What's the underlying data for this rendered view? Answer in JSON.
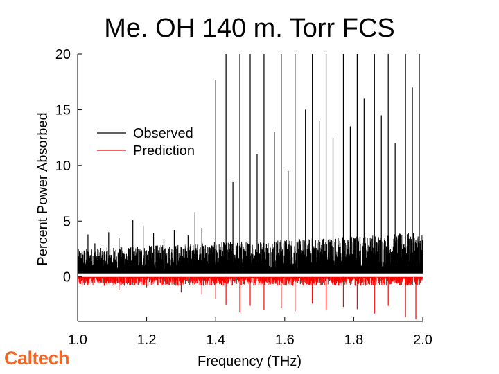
{
  "slide": {
    "title": "Me. OH 140 m. Torr FCS",
    "logo_text": "Caltech"
  },
  "chart_data": {
    "type": "line",
    "title": "Me. OH 140 m. Torr FCS",
    "xlabel": "Frequency (THz)",
    "ylabel": "Percent Power Absorbed",
    "xlim": [
      1.0,
      2.0
    ],
    "ylim": [
      -4,
      20
    ],
    "x_ticks": [
      1.0,
      1.2,
      1.4,
      1.6,
      1.8,
      2.0
    ],
    "x_tick_labels": [
      "1.0",
      "1.2",
      "1.4",
      "1.6",
      "1.8",
      "2.0"
    ],
    "y_ticks": [
      0,
      5,
      10,
      15,
      20
    ],
    "y_tick_labels": [
      "0",
      "5",
      "10",
      "15",
      "20"
    ],
    "legend": {
      "placement": "upper-left",
      "entries": [
        {
          "label": "Observed",
          "color": "#000000"
        },
        {
          "label": "Prediction",
          "color": "#ff0000"
        }
      ]
    },
    "series": [
      {
        "name": "Observed",
        "color": "#000000",
        "baseline_range": [
          0.5,
          2.5
        ],
        "peaks": [
          {
            "x": 1.03,
            "y": 3.8
          },
          {
            "x": 1.05,
            "y": 3.0
          },
          {
            "x": 1.09,
            "y": 4.0
          },
          {
            "x": 1.12,
            "y": 3.5
          },
          {
            "x": 1.16,
            "y": 5.1
          },
          {
            "x": 1.19,
            "y": 4.6
          },
          {
            "x": 1.22,
            "y": 3.9
          },
          {
            "x": 1.25,
            "y": 3.4
          },
          {
            "x": 1.28,
            "y": 4.2
          },
          {
            "x": 1.32,
            "y": 3.7
          },
          {
            "x": 1.34,
            "y": 5.8
          },
          {
            "x": 1.36,
            "y": 4.4
          },
          {
            "x": 1.4,
            "y": 17.7
          },
          {
            "x": 1.43,
            "y": 20.0
          },
          {
            "x": 1.45,
            "y": 8.5
          },
          {
            "x": 1.47,
            "y": 20.0
          },
          {
            "x": 1.5,
            "y": 20.0
          },
          {
            "x": 1.52,
            "y": 11.0
          },
          {
            "x": 1.54,
            "y": 20.0
          },
          {
            "x": 1.57,
            "y": 13.0
          },
          {
            "x": 1.59,
            "y": 20.0
          },
          {
            "x": 1.61,
            "y": 9.5
          },
          {
            "x": 1.63,
            "y": 20.0
          },
          {
            "x": 1.66,
            "y": 15.0
          },
          {
            "x": 1.68,
            "y": 20.0
          },
          {
            "x": 1.7,
            "y": 14.0
          },
          {
            "x": 1.72,
            "y": 20.0
          },
          {
            "x": 1.74,
            "y": 12.5
          },
          {
            "x": 1.77,
            "y": 20.0
          },
          {
            "x": 1.79,
            "y": 13.5
          },
          {
            "x": 1.81,
            "y": 20.0
          },
          {
            "x": 1.83,
            "y": 16.0
          },
          {
            "x": 1.86,
            "y": 20.0
          },
          {
            "x": 1.88,
            "y": 14.5
          },
          {
            "x": 1.9,
            "y": 20.0
          },
          {
            "x": 1.92,
            "y": 12.0
          },
          {
            "x": 1.95,
            "y": 20.0
          },
          {
            "x": 1.97,
            "y": 17.0
          },
          {
            "x": 1.99,
            "y": 20.0
          }
        ]
      },
      {
        "name": "Prediction",
        "color": "#ff0000",
        "baseline_range": [
          -0.8,
          0.0
        ],
        "dips": [
          {
            "x": 1.12,
            "y": -1.2
          },
          {
            "x": 1.2,
            "y": -1.0
          },
          {
            "x": 1.3,
            "y": -1.4
          },
          {
            "x": 1.36,
            "y": -1.6
          },
          {
            "x": 1.4,
            "y": -2.0
          },
          {
            "x": 1.43,
            "y": -2.5
          },
          {
            "x": 1.47,
            "y": -3.2
          },
          {
            "x": 1.5,
            "y": -2.6
          },
          {
            "x": 1.54,
            "y": -3.0
          },
          {
            "x": 1.59,
            "y": -2.8
          },
          {
            "x": 1.63,
            "y": -3.1
          },
          {
            "x": 1.68,
            "y": -2.4
          },
          {
            "x": 1.72,
            "y": -3.0
          },
          {
            "x": 1.77,
            "y": -2.7
          },
          {
            "x": 1.81,
            "y": -2.9
          },
          {
            "x": 1.86,
            "y": -3.3
          },
          {
            "x": 1.9,
            "y": -2.6
          },
          {
            "x": 1.95,
            "y": -3.6
          },
          {
            "x": 1.98,
            "y": -3.8
          }
        ]
      }
    ]
  }
}
